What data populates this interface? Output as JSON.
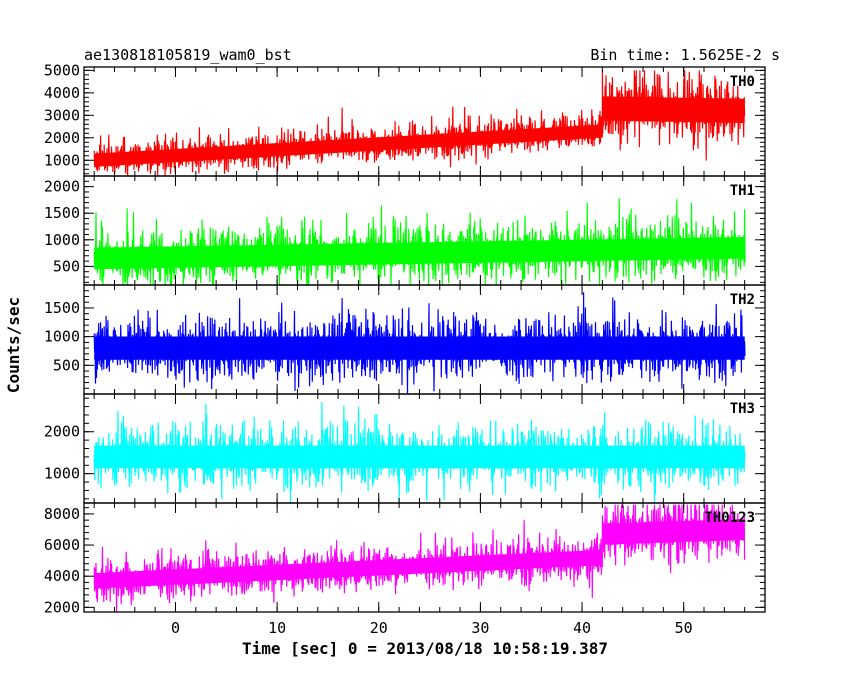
{
  "header": {
    "left_title": "ae130818105819_wam0_bst",
    "right_title": "Bin time: 1.5625E-2 s"
  },
  "chart_data": {
    "type": "line",
    "title": "ae130818105819_wam0_bst",
    "subtitle": "Bin time: 1.5625E-2 s",
    "xlabel": "Time [sec] 0 = 2013/08/18 10:58:19.387",
    "ylabel": "Counts/sec",
    "xlim": [
      -9,
      58
    ],
    "x_ticks": [
      0,
      10,
      20,
      30,
      40,
      50
    ],
    "x_range_data": [
      -8,
      56
    ],
    "grid": false,
    "panels": [
      {
        "name": "TH0",
        "color": "#ff0000",
        "ylim": [
          300,
          5150
        ],
        "y_ticks": [
          1000,
          2000,
          3000,
          4000,
          5000
        ],
        "segments": [
          {
            "x": [
              -8,
              42
            ],
            "mean_start": 1000,
            "mean_end": 2300,
            "spread": 650
          },
          {
            "x": [
              42,
              56
            ],
            "mean_start": 3300,
            "mean_end": 3200,
            "spread": 1200
          }
        ],
        "peak_max": 5000
      },
      {
        "name": "TH1",
        "color": "#00ff00",
        "ylim": [
          150,
          2200
        ],
        "y_ticks": [
          500,
          1000,
          1500,
          2000
        ],
        "segments": [
          {
            "x": [
              -8,
              56
            ],
            "mean_start": 650,
            "mean_end": 850,
            "spread": 450
          }
        ],
        "peak_max": 2150
      },
      {
        "name": "TH2",
        "color": "#0000ff",
        "ylim": [
          0,
          1900
        ],
        "y_ticks": [
          500,
          1000,
          1500
        ],
        "segments": [
          {
            "x": [
              -8,
              56
            ],
            "mean_start": 800,
            "mean_end": 800,
            "spread": 450
          }
        ],
        "peak_max": 1900
      },
      {
        "name": "TH3",
        "color": "#00ffff",
        "ylim": [
          300,
          2900
        ],
        "y_ticks": [
          1000,
          2000
        ],
        "segments": [
          {
            "x": [
              -8,
              56
            ],
            "mean_start": 1400,
            "mean_end": 1400,
            "spread": 600
          }
        ],
        "peak_max": 2850
      },
      {
        "name": "TH0123",
        "color": "#ff00ff",
        "ylim": [
          1700,
          8700
        ],
        "y_ticks": [
          2000,
          4000,
          6000,
          8000
        ],
        "segments": [
          {
            "x": [
              -8,
              42
            ],
            "mean_start": 3700,
            "mean_end": 5200,
            "spread": 1100
          },
          {
            "x": [
              42,
              56
            ],
            "mean_start": 6700,
            "mean_end": 7000,
            "spread": 1500
          }
        ],
        "peak_max": 8600
      }
    ]
  }
}
